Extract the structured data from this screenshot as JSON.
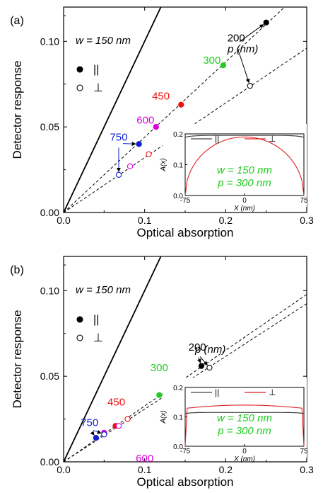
{
  "colors": {
    "axis": "#000000",
    "series_parallel": "#000000",
    "series_perp": "#000000",
    "p_200": "#000000",
    "p_300": "#22cc22",
    "p_450": "#ee1111",
    "p_600": "#dd00dd",
    "p_750": "#1122cc",
    "inset_parallel": "#404040",
    "inset_perp": "#dd2222",
    "inset_text": "#22cc22"
  },
  "chart_data": [
    {
      "type": "scatter",
      "panel_label": "(a)",
      "xlabel": "Optical absorption",
      "ylabel": "Detector response",
      "xlim": [
        0,
        0.3
      ],
      "ylim": [
        0,
        0.12
      ],
      "x_ticks": [
        "0.0",
        "0.1",
        "0.2",
        "0.3"
      ],
      "y_ticks": [
        "0.00",
        "0.05",
        "0.10"
      ],
      "width_label": "w = 150 nm",
      "legend": [
        {
          "symbol": "●",
          "label": "||"
        },
        {
          "symbol": "○",
          "label": "⊥"
        }
      ],
      "p_header": "p (nm)",
      "reference_line": {
        "x": [
          0,
          0.12
        ],
        "y": [
          0,
          0.12
        ]
      },
      "fit_lines": [
        {
          "series": "||",
          "slope": 0.44,
          "x_end": 0.3
        },
        {
          "series": "⊥",
          "slope": 0.32,
          "x_end": 0.3
        }
      ],
      "series": [
        {
          "name": "||",
          "filled": true,
          "p_labels": [
            "200",
            "300",
            "450",
            "600",
            "750"
          ],
          "x": [
            0.25,
            0.197,
            0.145,
            0.114,
            0.093
          ],
          "y": [
            0.111,
            0.086,
            0.063,
            0.05,
            0.04
          ]
        },
        {
          "name": "⊥",
          "filled": false,
          "p_labels": [
            "200",
            "300",
            "450",
            "600",
            "750"
          ],
          "x": [
            0.23,
            0.152,
            0.105,
            0.082,
            0.068
          ],
          "y": [
            0.074,
            0.049,
            0.034,
            0.027,
            0.022
          ]
        }
      ],
      "point_labels": [
        {
          "text": "200",
          "color": "p_200",
          "x": 0.213,
          "y": 0.1
        },
        {
          "text": "300",
          "color": "p_300",
          "x": 0.183,
          "y": 0.087
        },
        {
          "text": "450",
          "color": "p_450",
          "x": 0.12,
          "y": 0.066
        },
        {
          "text": "600",
          "color": "p_600",
          "x": 0.101,
          "y": 0.052
        },
        {
          "text": "750",
          "color": "p_750",
          "x": 0.068,
          "y": 0.042
        }
      ],
      "inset": {
        "xlabel": "X (nm)",
        "ylabel": "A(x)",
        "xlim": [
          -75,
          75
        ],
        "ylim": [
          0,
          0.2
        ],
        "x_ticks": [
          "-75",
          "0",
          "75"
        ],
        "y_ticks": [
          "0.0",
          "0.1",
          "0.2"
        ],
        "legend": [
          "||",
          "⊥"
        ],
        "text_lines": [
          "w = 150 nm",
          "p = 300 nm"
        ],
        "parallel_level": 0.195,
        "perp_peak": 0.19
      }
    },
    {
      "type": "scatter",
      "panel_label": "(b)",
      "xlabel": "Optical absorption",
      "ylabel": "Detector response",
      "xlim": [
        0,
        0.3
      ],
      "ylim": [
        0,
        0.12
      ],
      "x_ticks": [
        "0.0",
        "0.1",
        "0.2",
        "0.3"
      ],
      "y_ticks": [
        "0.00",
        "0.05",
        "0.10"
      ],
      "width_label": "w = 150 nm",
      "legend": [
        {
          "symbol": "●",
          "label": "||"
        },
        {
          "symbol": "○",
          "label": "⊥"
        }
      ],
      "p_header": "p (nm)",
      "reference_line": {
        "x": [
          0,
          0.12
        ],
        "y": [
          0,
          0.12
        ]
      },
      "fit_lines": [
        {
          "series": "||",
          "slope": 0.326,
          "x_end": 0.3
        },
        {
          "series": "⊥",
          "slope": 0.308,
          "x_end": 0.3
        }
      ],
      "series": [
        {
          "name": "||",
          "filled": true,
          "p_labels": [
            "200",
            "300",
            "450",
            "600",
            "750"
          ],
          "x": [
            0.17,
            0.118,
            0.064,
            0.05,
            0.04
          ],
          "y": [
            0.056,
            0.039,
            0.021,
            0.017,
            0.014
          ]
        },
        {
          "name": "⊥",
          "filled": false,
          "p_labels": [
            "200",
            "300",
            "450",
            "600",
            "750"
          ],
          "x": [
            0.18,
            0.134,
            0.079,
            0.068,
            0.05
          ],
          "y": [
            0.055,
            0.041,
            0.025,
            0.021,
            0.016
          ]
        }
      ],
      "point_labels": [
        {
          "text": "200",
          "color": "p_200",
          "x": 0.165,
          "y": 0.065
        },
        {
          "text": "300",
          "color": "p_300",
          "x": 0.118,
          "y": 0.053
        },
        {
          "text": "450",
          "color": "p_450",
          "x": 0.065,
          "y": 0.033
        },
        {
          "text": "600",
          "color": "p_600",
          "x": 0.1,
          "y": 0.0
        },
        {
          "text": "750",
          "color": "p_750",
          "x": 0.032,
          "y": 0.021
        }
      ],
      "inset": {
        "xlabel": "X (nm)",
        "ylabel": "A(x)",
        "xlim": [
          -75,
          75
        ],
        "ylim": [
          0,
          0.2
        ],
        "x_ticks": [
          "-75",
          "0",
          "75"
        ],
        "y_ticks": [
          "0.0",
          "0.1",
          "0.2"
        ],
        "legend": [
          "||",
          "⊥"
        ],
        "text_lines": [
          "w = 150 nm",
          "p = 300 nm"
        ],
        "parallel_level": 0.115,
        "perp_peak": 0.14
      }
    }
  ]
}
